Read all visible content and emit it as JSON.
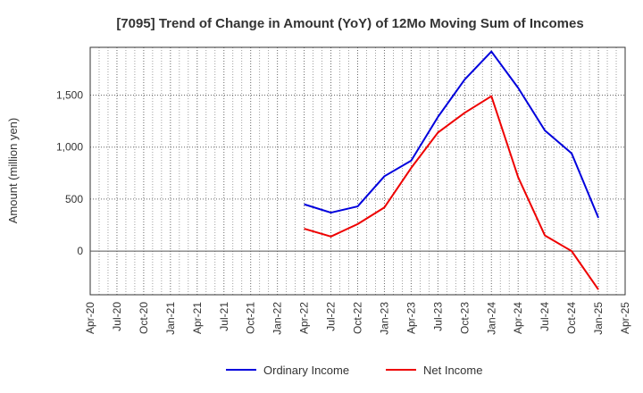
{
  "chart_data": {
    "type": "line",
    "title": "[7095]  Trend of Change in Amount (YoY) of 12Mo Moving Sum of Incomes",
    "xlabel": "",
    "ylabel": "Amount (million yen)",
    "x": [
      "Apr-20",
      "Jul-20",
      "Oct-20",
      "Jan-21",
      "Apr-21",
      "Jul-21",
      "Oct-21",
      "Jan-22",
      "Apr-22",
      "Jul-22",
      "Oct-22",
      "Jan-23",
      "Apr-23",
      "Jul-23",
      "Oct-23",
      "Jan-24",
      "Apr-24",
      "Jul-24",
      "Oct-24",
      "Jan-25",
      "Apr-25"
    ],
    "yticks": [
      0,
      500,
      1000,
      1500
    ],
    "ytick_labels": [
      "0",
      "500",
      "1,000",
      "1,500"
    ],
    "ylim": [
      -420,
      1960
    ],
    "grid": true,
    "legend_position": "bottom-center",
    "series": [
      {
        "name": "Ordinary Income",
        "color": "#0000dd",
        "values": [
          null,
          null,
          null,
          null,
          null,
          null,
          null,
          null,
          450,
          370,
          430,
          720,
          870,
          1290,
          1650,
          1920,
          1570,
          1160,
          940,
          320,
          null
        ]
      },
      {
        "name": "Net Income",
        "color": "#ee0000",
        "values": [
          null,
          null,
          null,
          null,
          null,
          null,
          null,
          null,
          215,
          140,
          260,
          420,
          800,
          1140,
          1330,
          1490,
          710,
          150,
          0,
          -370,
          null
        ]
      }
    ]
  }
}
